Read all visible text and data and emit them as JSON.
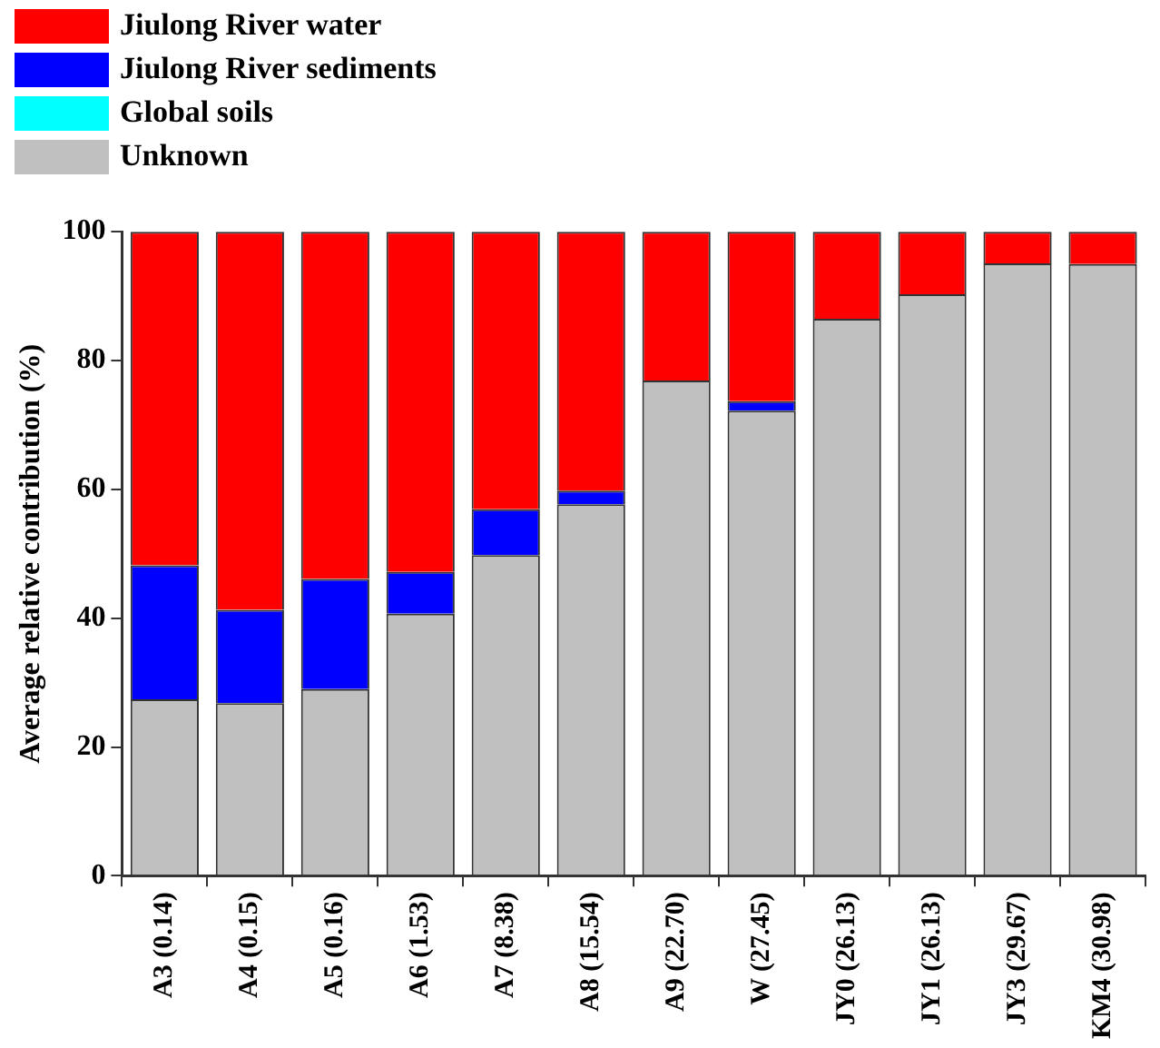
{
  "chart_data": {
    "type": "bar",
    "stacked": true,
    "ylabel": "Average relative contribution (%)",
    "categories": [
      "A3 (0.14)",
      "A4 (0.15)",
      "A5 (0.16)",
      "A6 (1.53)",
      "A7 (8.38)",
      "A8 (15.54)",
      "A9 (22.70)",
      "W (27.45)",
      "JY0 (26.13)",
      "JY1 (26.13)",
      "JY3 (29.67)",
      "KM4 (30.98)"
    ],
    "series": [
      {
        "name": "Unknown",
        "color": "#c0c0c0",
        "values": [
          27.4,
          26.8,
          29.0,
          40.7,
          49.8,
          57.7,
          76.9,
          72.2,
          86.5,
          90.3,
          95.1,
          95.0
        ]
      },
      {
        "name": "Global soils",
        "color": "#00ffff",
        "values": [
          0,
          0,
          0,
          0,
          0,
          0,
          0,
          0,
          0,
          0,
          0,
          0
        ]
      },
      {
        "name": "Jiulong River sediments",
        "color": "#0000ff",
        "values": [
          20.8,
          14.5,
          17.1,
          6.5,
          7.1,
          2.1,
          0,
          1.5,
          0,
          0,
          0,
          0
        ]
      },
      {
        "name": "Jiulong River water",
        "color": "#ff0000",
        "values": [
          51.8,
          58.7,
          53.9,
          52.8,
          43.1,
          40.2,
          23.1,
          26.3,
          13.5,
          9.7,
          4.9,
          5.0
        ]
      }
    ],
    "ylim": [
      0,
      100
    ],
    "yticks": [
      0,
      20,
      40,
      60,
      80,
      100
    ],
    "grid": false,
    "legend": "top left"
  }
}
